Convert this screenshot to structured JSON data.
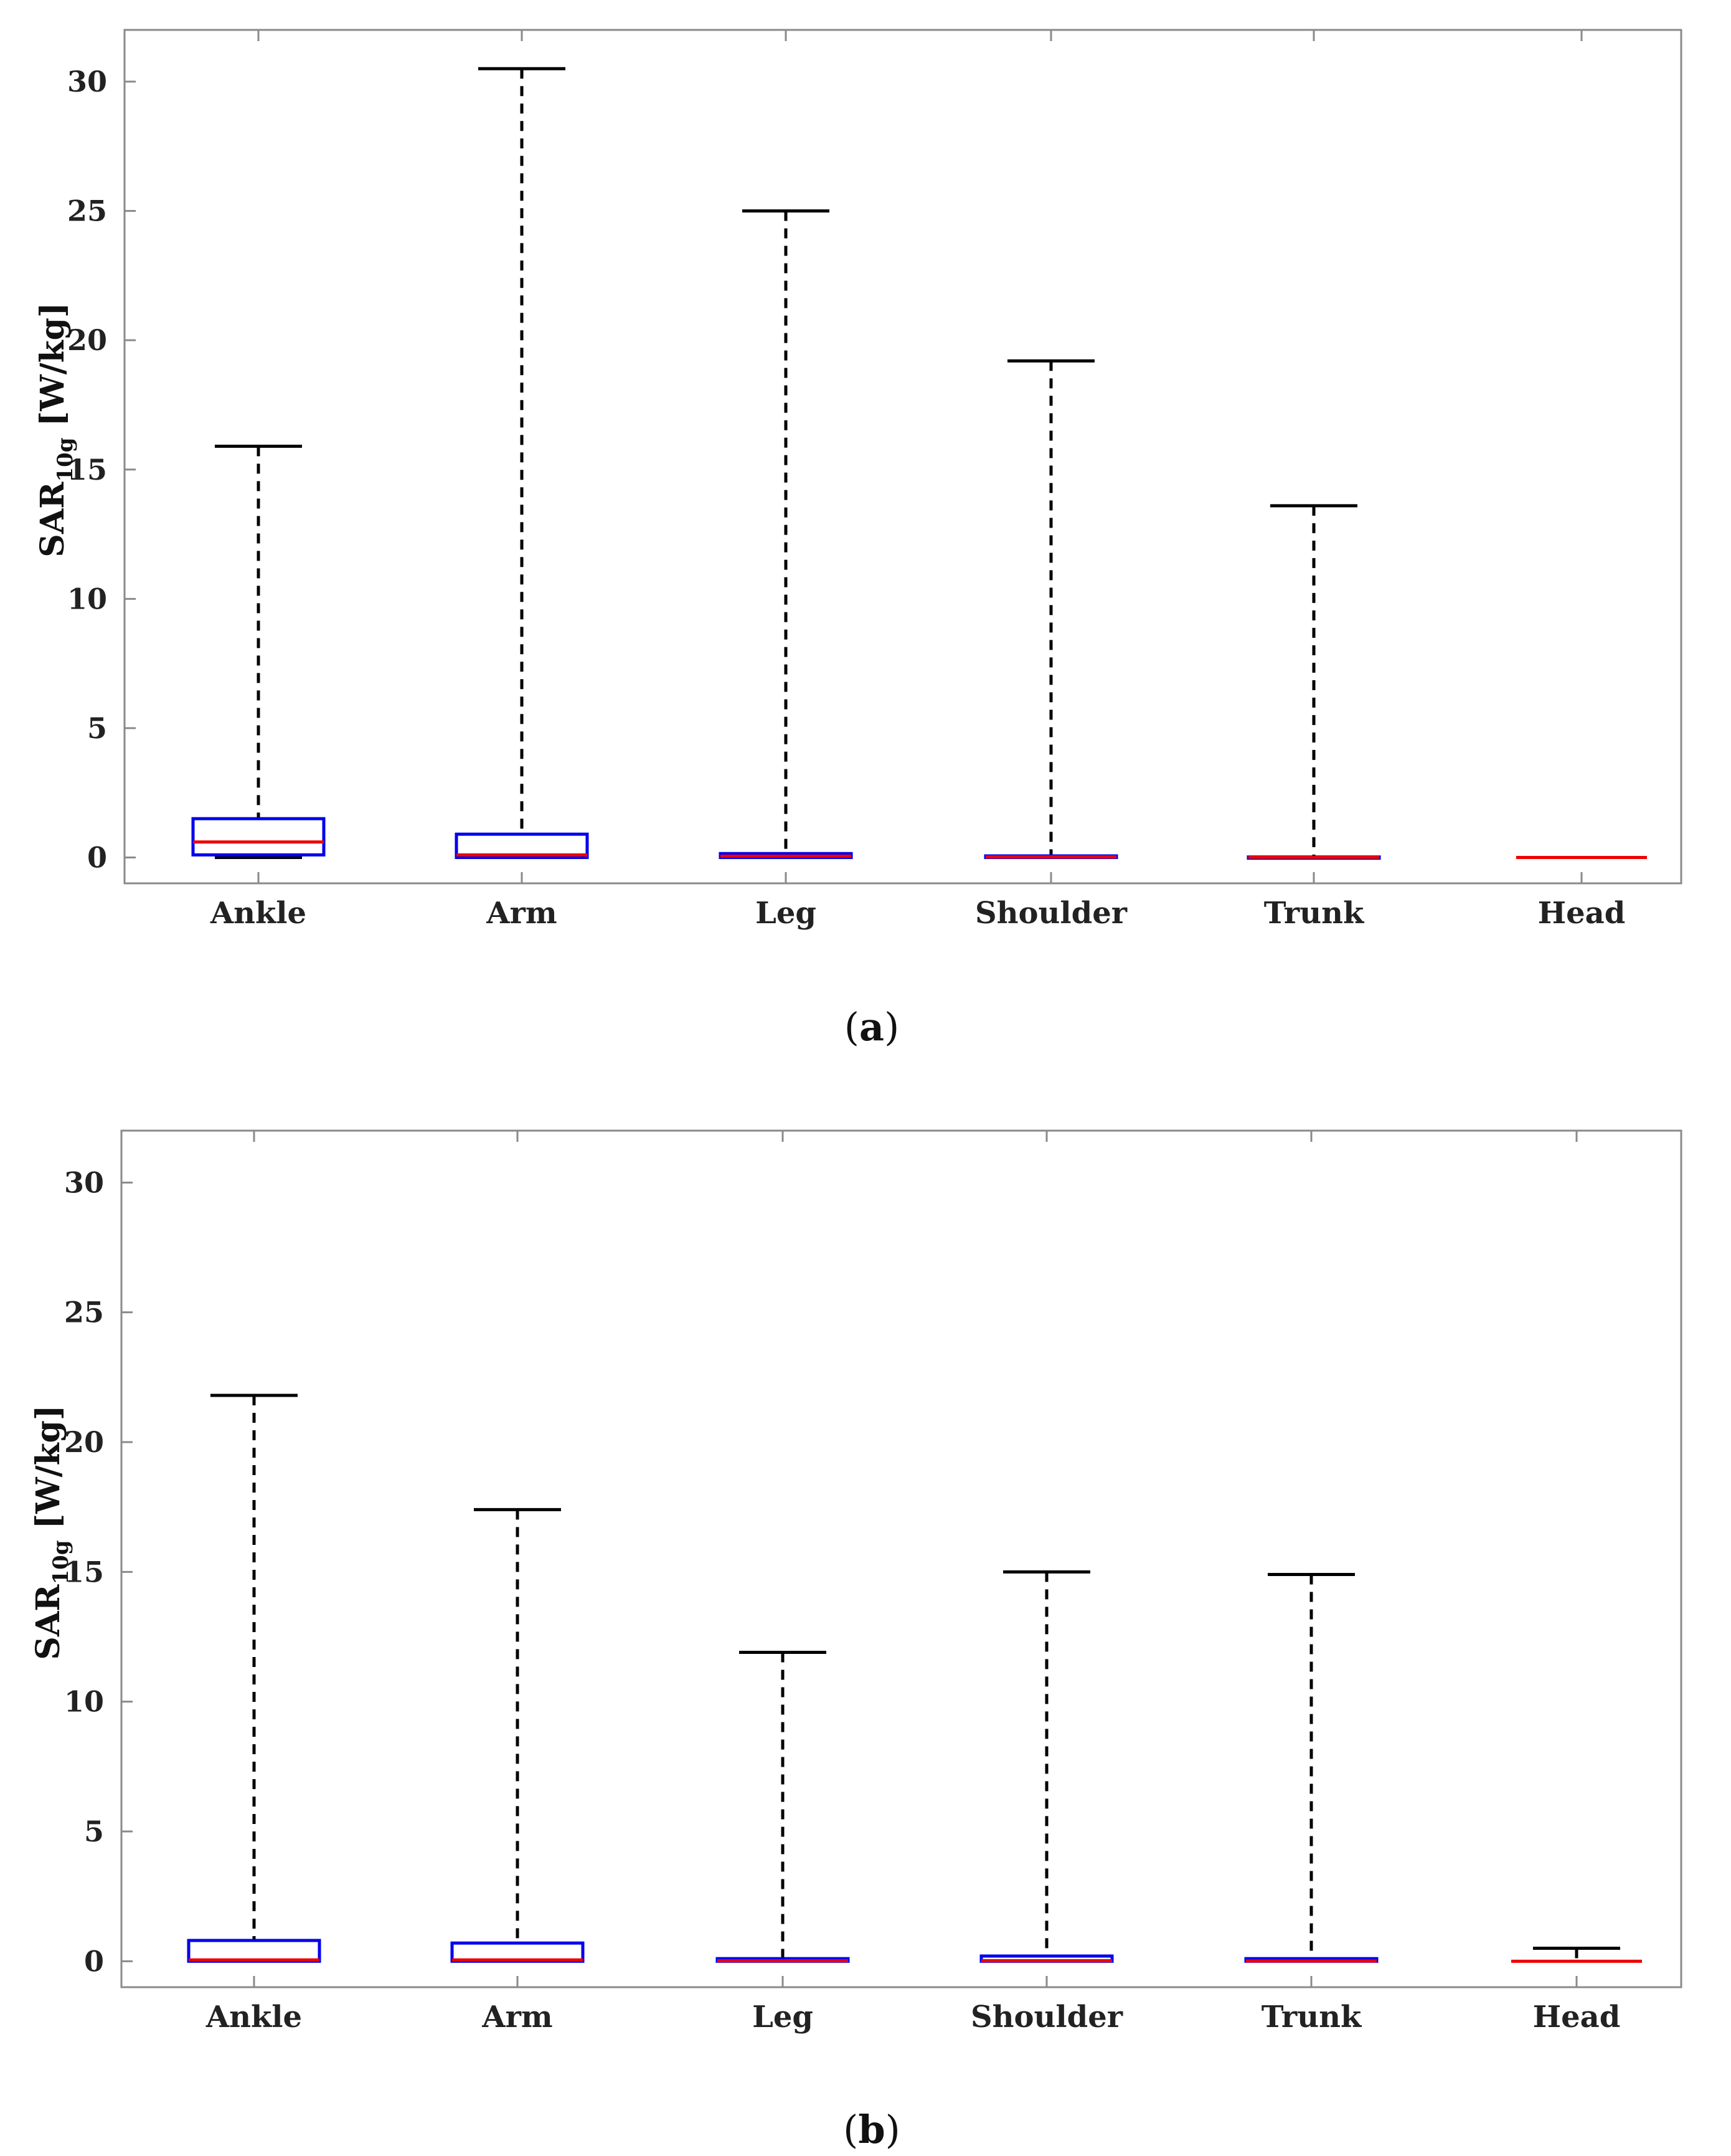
{
  "chart_data": [
    {
      "type": "boxplot",
      "panel": "a",
      "caption_open": "(",
      "caption_letter": "a",
      "caption_close": ")",
      "ylabel_main": "SAR",
      "ylabel_sub": "10g",
      "ylabel_unit": "[W/kg]",
      "ylim": [
        -1,
        32
      ],
      "yticks": [
        0,
        5,
        10,
        15,
        20,
        25,
        30
      ],
      "categories": [
        "Ankle",
        "Arm",
        "Leg",
        "Shoulder",
        "Trunk",
        "Head"
      ],
      "boxes": [
        {
          "min": 0.0,
          "q1": 0.1,
          "median": 0.6,
          "q3": 1.5,
          "max": 15.9
        },
        {
          "min": 0.0,
          "q1": 0.0,
          "median": 0.1,
          "q3": 0.9,
          "max": 30.5
        },
        {
          "min": 0.0,
          "q1": 0.0,
          "median": 0.05,
          "q3": 0.15,
          "max": 25.0
        },
        {
          "min": 0.0,
          "q1": 0.0,
          "median": 0.02,
          "q3": 0.06,
          "max": 19.2
        },
        {
          "min": 0.0,
          "q1": 0.0,
          "median": 0.01,
          "q3": 0.02,
          "max": 13.6
        },
        {
          "min": 0.0,
          "q1": 0.0,
          "median": 0.0,
          "q3": 0.0,
          "max": 0.0
        }
      ],
      "colors": {
        "box": "#0000ee",
        "median": "#ee0000",
        "whisker": "#000000"
      }
    },
    {
      "type": "boxplot",
      "panel": "b",
      "caption_open": "(",
      "caption_letter": "b",
      "caption_close": ")",
      "ylabel_main": "SAR",
      "ylabel_sub": "10g",
      "ylabel_unit": "[W/kg]",
      "ylim": [
        -1,
        32
      ],
      "yticks": [
        0,
        5,
        10,
        15,
        20,
        25,
        30
      ],
      "categories": [
        "Ankle",
        "Arm",
        "Leg",
        "Shoulder",
        "Trunk",
        "Head"
      ],
      "boxes": [
        {
          "min": 0.0,
          "q1": 0.0,
          "median": 0.05,
          "q3": 0.8,
          "max": 21.8
        },
        {
          "min": 0.0,
          "q1": 0.0,
          "median": 0.05,
          "q3": 0.7,
          "max": 17.4
        },
        {
          "min": 0.0,
          "q1": 0.0,
          "median": 0.02,
          "q3": 0.1,
          "max": 11.9
        },
        {
          "min": 0.0,
          "q1": 0.0,
          "median": 0.02,
          "q3": 0.2,
          "max": 15.0
        },
        {
          "min": 0.0,
          "q1": 0.0,
          "median": 0.01,
          "q3": 0.1,
          "max": 14.9
        },
        {
          "min": 0.0,
          "q1": 0.0,
          "median": 0.0,
          "q3": 0.0,
          "max": 0.5
        }
      ],
      "colors": {
        "box": "#0000ee",
        "median": "#ee0000",
        "whisker": "#000000"
      }
    }
  ]
}
